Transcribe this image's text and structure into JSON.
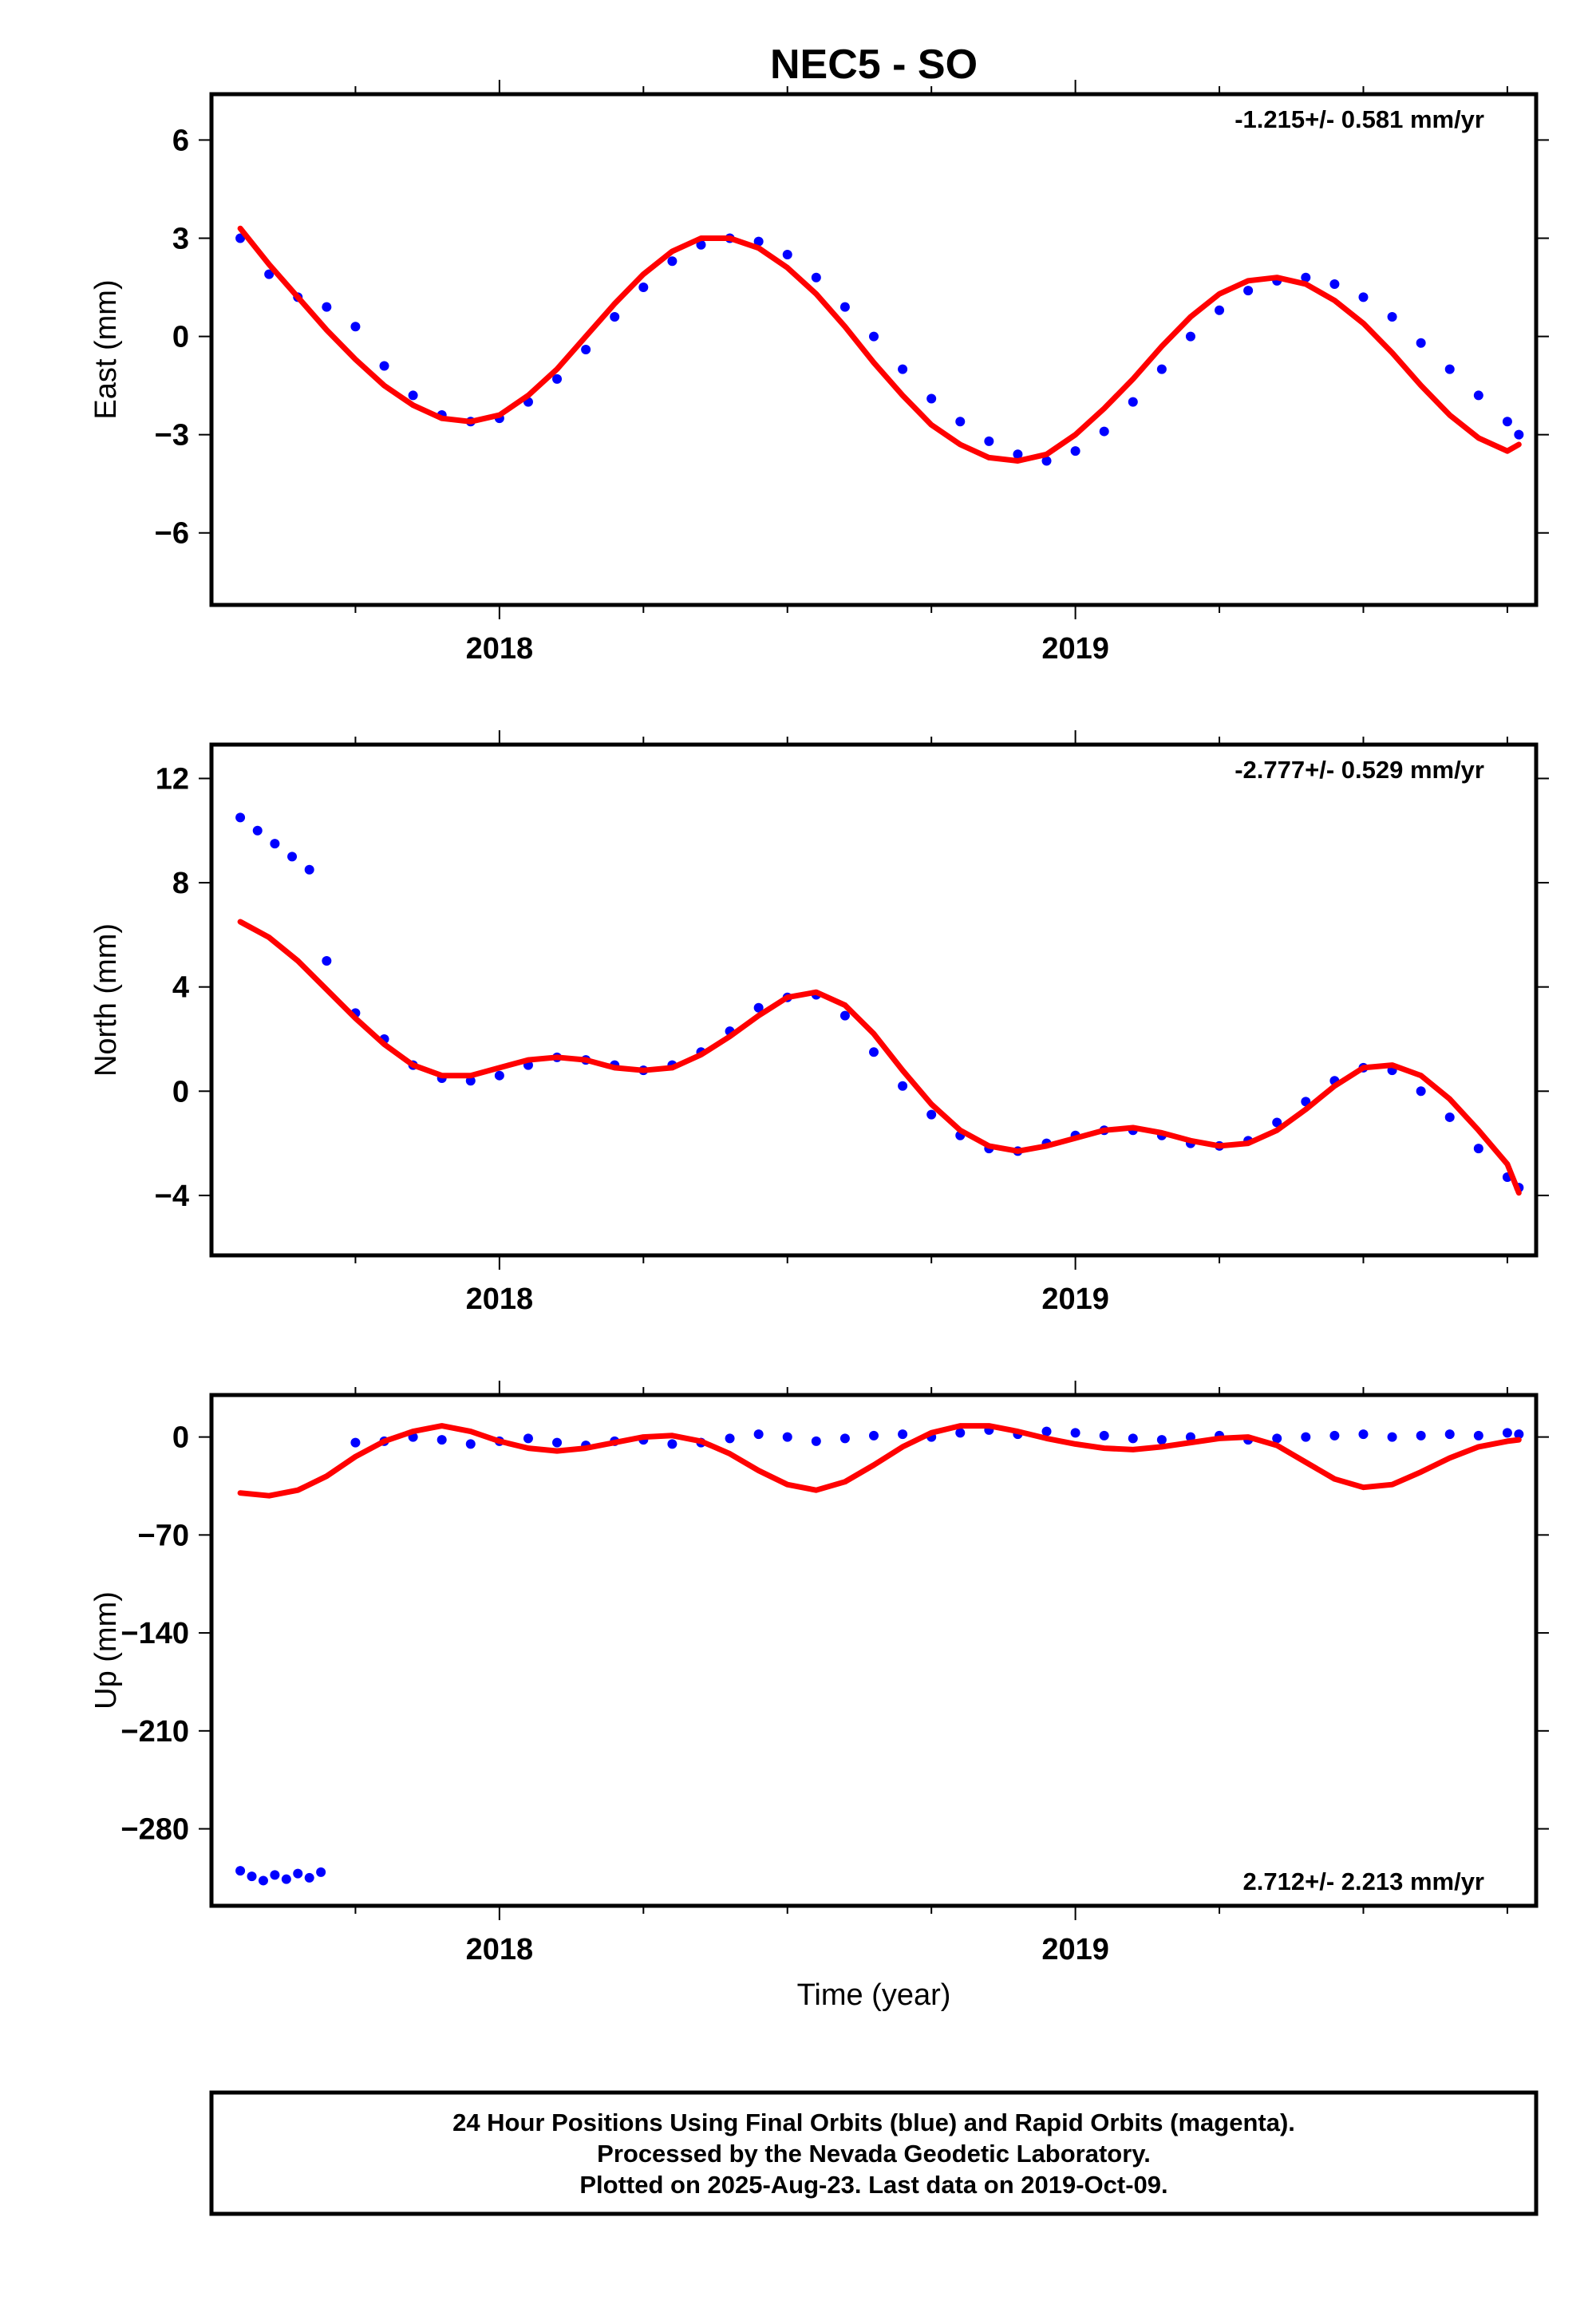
{
  "title": "NEC5 - SO",
  "xlabel": "Time (year)",
  "colors": {
    "final_orbits": "#0000ff",
    "model": "#ff0000",
    "frame": "#000000"
  },
  "chart_data": [
    {
      "type": "scatter",
      "panel": "east",
      "ylabel": "East (mm)",
      "rate": "-1.215+/- 0.581 mm/yr",
      "xlim": [
        2017.5,
        2019.8
      ],
      "ylim": [
        -8.2,
        7.4
      ],
      "yticks": [
        6,
        3,
        0,
        -3,
        -6
      ],
      "ytick_labels": [
        "6",
        "3",
        "0",
        "−3",
        "−6"
      ],
      "xticks": [
        2018,
        2019
      ],
      "xtick_labels": [
        "2018",
        "2019"
      ],
      "series": [
        {
          "marker": "dot",
          "x": [
            2017.55,
            2017.6,
            2017.65,
            2017.7,
            2017.75,
            2017.8,
            2017.85,
            2017.9,
            2017.95,
            2018.0,
            2018.05,
            2018.1,
            2018.15,
            2018.2,
            2018.25,
            2018.3,
            2018.35,
            2018.4,
            2018.45,
            2018.5,
            2018.55,
            2018.6,
            2018.65,
            2018.7,
            2018.75,
            2018.8,
            2018.85,
            2018.9,
            2018.95,
            2019.0,
            2019.05,
            2019.1,
            2019.15,
            2019.2,
            2019.25,
            2019.3,
            2019.35,
            2019.4,
            2019.45,
            2019.5,
            2019.55,
            2019.6,
            2019.65,
            2019.7,
            2019.75,
            2019.77
          ],
          "y": [
            3.0,
            1.9,
            1.2,
            0.9,
            0.3,
            -0.9,
            -1.8,
            -2.4,
            -2.6,
            -2.5,
            -2.0,
            -1.3,
            -0.4,
            0.6,
            1.5,
            2.3,
            2.8,
            3.0,
            2.9,
            2.5,
            1.8,
            0.9,
            0.0,
            -1.0,
            -1.9,
            -2.6,
            -3.2,
            -3.6,
            -3.8,
            -3.5,
            -2.9,
            -2.0,
            -1.0,
            0.0,
            0.8,
            1.4,
            1.7,
            1.8,
            1.6,
            1.2,
            0.6,
            -0.2,
            -1.0,
            -1.8,
            -2.6,
            -3.0
          ]
        }
      ],
      "model": {
        "x": [
          2017.55,
          2017.6,
          2017.65,
          2017.7,
          2017.75,
          2017.8,
          2017.85,
          2017.9,
          2017.95,
          2018.0,
          2018.05,
          2018.1,
          2018.15,
          2018.2,
          2018.25,
          2018.3,
          2018.35,
          2018.4,
          2018.45,
          2018.5,
          2018.55,
          2018.6,
          2018.65,
          2018.7,
          2018.75,
          2018.8,
          2018.85,
          2018.9,
          2018.95,
          2019.0,
          2019.05,
          2019.1,
          2019.15,
          2019.2,
          2019.25,
          2019.3,
          2019.35,
          2019.4,
          2019.45,
          2019.5,
          2019.55,
          2019.6,
          2019.65,
          2019.7,
          2019.75,
          2019.77
        ],
        "y": [
          3.3,
          2.2,
          1.2,
          0.2,
          -0.7,
          -1.5,
          -2.1,
          -2.5,
          -2.6,
          -2.4,
          -1.8,
          -1.0,
          0.0,
          1.0,
          1.9,
          2.6,
          3.0,
          3.0,
          2.7,
          2.1,
          1.3,
          0.3,
          -0.8,
          -1.8,
          -2.7,
          -3.3,
          -3.7,
          -3.8,
          -3.6,
          -3.0,
          -2.2,
          -1.3,
          -0.3,
          0.6,
          1.3,
          1.7,
          1.8,
          1.6,
          1.1,
          0.4,
          -0.5,
          -1.5,
          -2.4,
          -3.1,
          -3.5,
          -3.3
        ]
      }
    },
    {
      "type": "scatter",
      "panel": "north",
      "ylabel": "North (mm)",
      "rate": "-2.777+/- 0.529 mm/yr",
      "xlim": [
        2017.5,
        2019.8
      ],
      "ylim": [
        -6.3,
        13.3
      ],
      "yticks": [
        12,
        8,
        4,
        0,
        -4
      ],
      "ytick_labels": [
        "12",
        "8",
        "4",
        "0",
        "−4"
      ],
      "xticks": [
        2018,
        2019
      ],
      "xtick_labels": [
        "2018",
        "2019"
      ],
      "series": [
        {
          "marker": "dot",
          "x": [
            2017.55,
            2017.58,
            2017.61,
            2017.64,
            2017.67,
            2017.7,
            2017.75,
            2017.8,
            2017.85,
            2017.9,
            2017.95,
            2018.0,
            2018.05,
            2018.1,
            2018.15,
            2018.2,
            2018.25,
            2018.3,
            2018.35,
            2018.4,
            2018.45,
            2018.5,
            2018.55,
            2018.6,
            2018.65,
            2018.7,
            2018.75,
            2018.8,
            2018.85,
            2018.9,
            2018.95,
            2019.0,
            2019.05,
            2019.1,
            2019.15,
            2019.2,
            2019.25,
            2019.3,
            2019.35,
            2019.4,
            2019.45,
            2019.5,
            2019.55,
            2019.6,
            2019.65,
            2019.7,
            2019.75,
            2019.77
          ],
          "y": [
            10.5,
            10.0,
            9.5,
            9.0,
            8.5,
            5.0,
            3.0,
            2.0,
            1.0,
            0.5,
            0.4,
            0.6,
            1.0,
            1.3,
            1.2,
            1.0,
            0.8,
            1.0,
            1.5,
            2.3,
            3.2,
            3.6,
            3.7,
            2.9,
            1.5,
            0.2,
            -0.9,
            -1.7,
            -2.2,
            -2.3,
            -2.0,
            -1.7,
            -1.5,
            -1.5,
            -1.7,
            -2.0,
            -2.1,
            -1.9,
            -1.2,
            -0.4,
            0.4,
            0.9,
            0.8,
            0.0,
            -1.0,
            -2.2,
            -3.3,
            -3.7
          ]
        }
      ],
      "model": {
        "x": [
          2017.55,
          2017.6,
          2017.65,
          2017.7,
          2017.75,
          2017.8,
          2017.85,
          2017.9,
          2017.95,
          2018.0,
          2018.05,
          2018.1,
          2018.15,
          2018.2,
          2018.25,
          2018.3,
          2018.35,
          2018.4,
          2018.45,
          2018.5,
          2018.55,
          2018.6,
          2018.65,
          2018.7,
          2018.75,
          2018.8,
          2018.85,
          2018.9,
          2018.95,
          2019.0,
          2019.05,
          2019.1,
          2019.15,
          2019.2,
          2019.25,
          2019.3,
          2019.35,
          2019.4,
          2019.45,
          2019.5,
          2019.55,
          2019.6,
          2019.65,
          2019.7,
          2019.75,
          2019.77
        ],
        "y": [
          6.5,
          5.9,
          5.0,
          3.9,
          2.8,
          1.8,
          1.0,
          0.6,
          0.6,
          0.9,
          1.2,
          1.3,
          1.2,
          0.9,
          0.8,
          0.9,
          1.4,
          2.1,
          2.9,
          3.6,
          3.8,
          3.3,
          2.2,
          0.8,
          -0.5,
          -1.5,
          -2.1,
          -2.3,
          -2.1,
          -1.8,
          -1.5,
          -1.4,
          -1.6,
          -1.9,
          -2.1,
          -2.0,
          -1.5,
          -0.7,
          0.2,
          0.9,
          1.0,
          0.6,
          -0.3,
          -1.5,
          -2.8,
          -3.9
        ]
      }
    },
    {
      "type": "scatter",
      "panel": "up",
      "ylabel": "Up (mm)",
      "rate": "2.712+/- 2.213 mm/yr",
      "xlim": [
        2017.5,
        2019.8
      ],
      "ylim": [
        -335,
        30
      ],
      "yticks": [
        0,
        -70,
        -140,
        -210,
        -280
      ],
      "ytick_labels": [
        "0",
        "−70",
        "−140",
        "−210",
        "−280"
      ],
      "xticks": [
        2018,
        2019
      ],
      "xtick_labels": [
        "2018",
        "2019"
      ],
      "series": [
        {
          "marker": "dot",
          "x": [
            2017.55,
            2017.57,
            2017.59,
            2017.61,
            2017.63,
            2017.65,
            2017.67,
            2017.69,
            2017.75,
            2017.8,
            2017.85,
            2017.9,
            2017.95,
            2018.0,
            2018.05,
            2018.1,
            2018.15,
            2018.2,
            2018.25,
            2018.3,
            2018.35,
            2018.4,
            2018.45,
            2018.5,
            2018.55,
            2018.6,
            2018.65,
            2018.7,
            2018.75,
            2018.8,
            2018.85,
            2018.9,
            2018.95,
            2019.0,
            2019.05,
            2019.1,
            2019.15,
            2019.2,
            2019.25,
            2019.3,
            2019.35,
            2019.4,
            2019.45,
            2019.5,
            2019.55,
            2019.6,
            2019.65,
            2019.7,
            2019.75,
            2019.77
          ],
          "y": [
            -310,
            -314,
            -317,
            -313,
            -316,
            -312,
            -315,
            -311,
            -4,
            -3,
            0,
            -2,
            -5,
            -3,
            -1,
            -4,
            -6,
            -3,
            -2,
            -5,
            -4,
            -1,
            2,
            0,
            -3,
            -1,
            1,
            2,
            0,
            3,
            5,
            2,
            4,
            3,
            1,
            -1,
            -2,
            0,
            1,
            -2,
            -1,
            0,
            1,
            2,
            0,
            1,
            2,
            1,
            3,
            2
          ]
        }
      ],
      "model": {
        "x": [
          2017.55,
          2017.6,
          2017.65,
          2017.7,
          2017.75,
          2017.8,
          2017.85,
          2017.9,
          2017.95,
          2018.0,
          2018.05,
          2018.1,
          2018.15,
          2018.2,
          2018.25,
          2018.3,
          2018.35,
          2018.4,
          2018.45,
          2018.5,
          2018.55,
          2018.6,
          2018.65,
          2018.7,
          2018.75,
          2018.8,
          2018.85,
          2018.9,
          2018.95,
          2019.0,
          2019.05,
          2019.1,
          2019.15,
          2019.2,
          2019.25,
          2019.3,
          2019.35,
          2019.4,
          2019.45,
          2019.5,
          2019.55,
          2019.6,
          2019.65,
          2019.7,
          2019.75,
          2019.77
        ],
        "y": [
          -40,
          -42,
          -38,
          -28,
          -14,
          -3,
          4,
          8,
          4,
          -3,
          -8,
          -10,
          -8,
          -4,
          0,
          1,
          -3,
          -12,
          -24,
          -34,
          -38,
          -32,
          -20,
          -7,
          3,
          8,
          8,
          4,
          -1,
          -5,
          -8,
          -9,
          -7,
          -4,
          -1,
          0,
          -6,
          -18,
          -30,
          -36,
          -34,
          -25,
          -15,
          -7,
          -3,
          -2
        ]
      }
    }
  ],
  "footer": {
    "line1": "24 Hour Positions Using Final Orbits (blue) and Rapid Orbits (magenta).",
    "line2": "Processed by the Nevada Geodetic Laboratory.",
    "line3": "Plotted on 2025-Aug-23. Last data on 2019-Oct-09."
  }
}
